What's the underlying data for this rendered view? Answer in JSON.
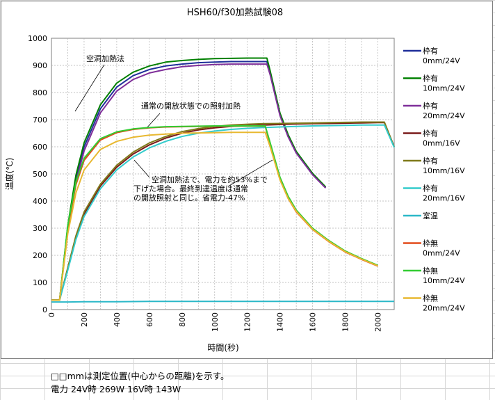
{
  "notes": {
    "line1": "□□mmは測定位置(中心からの距離)を示す。",
    "line2": "電力 24V時 269W 16V時 143W"
  },
  "chart_data": {
    "type": "line",
    "title": "HSH60/f30加熱試験08",
    "xlabel": "時間(秒)",
    "ylabel": "温度(℃)",
    "xlim": [
      0,
      2100
    ],
    "ylim": [
      0,
      1000
    ],
    "x_ticks": [
      0,
      200,
      400,
      600,
      800,
      1000,
      1200,
      1400,
      1600,
      1800,
      2000
    ],
    "y_ticks": [
      0,
      100,
      200,
      300,
      400,
      500,
      600,
      700,
      800,
      900,
      1000
    ],
    "grid": "vertical-and-horizontal",
    "legend_position": "right",
    "series": [
      {
        "name": "枠有 0mm/24V",
        "color": "#1f2f9a",
        "points": [
          [
            0,
            35
          ],
          [
            50,
            35
          ],
          [
            100,
            300
          ],
          [
            150,
            480
          ],
          [
            200,
            600
          ],
          [
            300,
            740
          ],
          [
            400,
            820
          ],
          [
            500,
            862
          ],
          [
            600,
            885
          ],
          [
            700,
            898
          ],
          [
            800,
            905
          ],
          [
            900,
            910
          ],
          [
            1000,
            912
          ],
          [
            1100,
            914
          ],
          [
            1200,
            914
          ],
          [
            1320,
            914
          ],
          [
            1340,
            870
          ],
          [
            1400,
            720
          ],
          [
            1450,
            640
          ],
          [
            1500,
            580
          ],
          [
            1600,
            500
          ],
          [
            1680,
            450
          ]
        ]
      },
      {
        "name": "枠有 10mm/24V",
        "color": "#008000",
        "points": [
          [
            0,
            35
          ],
          [
            50,
            35
          ],
          [
            100,
            310
          ],
          [
            150,
            495
          ],
          [
            200,
            615
          ],
          [
            300,
            755
          ],
          [
            400,
            835
          ],
          [
            500,
            875
          ],
          [
            600,
            898
          ],
          [
            700,
            912
          ],
          [
            800,
            918
          ],
          [
            900,
            922
          ],
          [
            1000,
            925
          ],
          [
            1100,
            926
          ],
          [
            1200,
            927
          ],
          [
            1320,
            927
          ],
          [
            1340,
            880
          ],
          [
            1400,
            725
          ],
          [
            1450,
            645
          ],
          [
            1500,
            583
          ],
          [
            1600,
            502
          ],
          [
            1680,
            452
          ]
        ]
      },
      {
        "name": "枠有 20mm/24V",
        "color": "#7f2f9a",
        "points": [
          [
            0,
            35
          ],
          [
            50,
            35
          ],
          [
            100,
            290
          ],
          [
            150,
            470
          ],
          [
            200,
            585
          ],
          [
            300,
            725
          ],
          [
            400,
            805
          ],
          [
            500,
            848
          ],
          [
            600,
            872
          ],
          [
            700,
            885
          ],
          [
            800,
            895
          ],
          [
            900,
            900
          ],
          [
            1000,
            903
          ],
          [
            1100,
            905
          ],
          [
            1200,
            905
          ],
          [
            1320,
            905
          ],
          [
            1340,
            865
          ],
          [
            1400,
            715
          ],
          [
            1450,
            637
          ],
          [
            1500,
            577
          ],
          [
            1600,
            497
          ],
          [
            1680,
            448
          ]
        ]
      },
      {
        "name": "枠有 0mm/16V",
        "color": "#7a1a1a",
        "points": [
          [
            0,
            35
          ],
          [
            50,
            35
          ],
          [
            100,
            150
          ],
          [
            150,
            265
          ],
          [
            200,
            352
          ],
          [
            300,
            455
          ],
          [
            400,
            525
          ],
          [
            500,
            573
          ],
          [
            600,
            607
          ],
          [
            700,
            632
          ],
          [
            800,
            650
          ],
          [
            900,
            662
          ],
          [
            1000,
            670
          ],
          [
            1100,
            675
          ],
          [
            1200,
            678
          ],
          [
            1300,
            680
          ],
          [
            1400,
            682
          ],
          [
            1500,
            684
          ],
          [
            1600,
            685
          ],
          [
            1700,
            686
          ],
          [
            1800,
            687
          ],
          [
            1900,
            688
          ],
          [
            2000,
            689
          ],
          [
            2040,
            689
          ],
          [
            2100,
            600
          ]
        ]
      },
      {
        "name": "枠有 10mm/16V",
        "color": "#7f7a1a",
        "points": [
          [
            0,
            35
          ],
          [
            50,
            35
          ],
          [
            100,
            155
          ],
          [
            150,
            272
          ],
          [
            200,
            360
          ],
          [
            300,
            462
          ],
          [
            400,
            532
          ],
          [
            500,
            580
          ],
          [
            600,
            614
          ],
          [
            700,
            638
          ],
          [
            800,
            656
          ],
          [
            900,
            667
          ],
          [
            1000,
            675
          ],
          [
            1100,
            680
          ],
          [
            1200,
            683
          ],
          [
            1300,
            685
          ],
          [
            1400,
            686
          ],
          [
            1500,
            687
          ],
          [
            1600,
            688
          ],
          [
            1700,
            689
          ],
          [
            1800,
            690
          ],
          [
            1900,
            691
          ],
          [
            2000,
            691
          ],
          [
            2040,
            691
          ],
          [
            2100,
            600
          ]
        ]
      },
      {
        "name": "枠有 20mm/16V",
        "color": "#33cccc",
        "points": [
          [
            0,
            35
          ],
          [
            50,
            35
          ],
          [
            100,
            145
          ],
          [
            150,
            258
          ],
          [
            200,
            343
          ],
          [
            300,
            445
          ],
          [
            400,
            515
          ],
          [
            500,
            562
          ],
          [
            600,
            596
          ],
          [
            700,
            620
          ],
          [
            800,
            638
          ],
          [
            900,
            650
          ],
          [
            1000,
            658
          ],
          [
            1100,
            664
          ],
          [
            1200,
            668
          ],
          [
            1300,
            671
          ],
          [
            1400,
            673
          ],
          [
            1500,
            675
          ],
          [
            1600,
            677
          ],
          [
            1700,
            678
          ],
          [
            1800,
            679
          ],
          [
            1900,
            680
          ],
          [
            2000,
            680
          ],
          [
            2040,
            680
          ],
          [
            2100,
            598
          ]
        ]
      },
      {
        "name": "室温",
        "color": "#2bb8c8",
        "points": [
          [
            0,
            28
          ],
          [
            100,
            28
          ],
          [
            200,
            29
          ],
          [
            400,
            29
          ],
          [
            600,
            30
          ],
          [
            800,
            30
          ],
          [
            1000,
            30
          ],
          [
            1200,
            30
          ],
          [
            1400,
            30
          ],
          [
            1600,
            30
          ],
          [
            1800,
            30
          ],
          [
            2000,
            30
          ],
          [
            2100,
            30
          ]
        ]
      },
      {
        "name": "枠無 0mm/24V",
        "color": "#e24a1a",
        "points": [
          [
            0,
            35
          ],
          [
            50,
            35
          ],
          [
            100,
            300
          ],
          [
            150,
            460
          ],
          [
            200,
            550
          ],
          [
            300,
            625
          ],
          [
            400,
            652
          ],
          [
            500,
            664
          ],
          [
            600,
            670
          ],
          [
            700,
            673
          ],
          [
            800,
            674
          ],
          [
            900,
            675
          ],
          [
            1000,
            676
          ],
          [
            1100,
            676
          ],
          [
            1200,
            676
          ],
          [
            1310,
            676
          ],
          [
            1340,
            610
          ],
          [
            1400,
            480
          ],
          [
            1450,
            410
          ],
          [
            1500,
            360
          ],
          [
            1600,
            295
          ],
          [
            1700,
            250
          ],
          [
            1800,
            212
          ],
          [
            1900,
            185
          ],
          [
            2000,
            160
          ]
        ]
      },
      {
        "name": "枠無 10mm/24V",
        "color": "#33cc33",
        "points": [
          [
            0,
            35
          ],
          [
            50,
            35
          ],
          [
            100,
            310
          ],
          [
            150,
            470
          ],
          [
            200,
            558
          ],
          [
            300,
            630
          ],
          [
            400,
            655
          ],
          [
            500,
            666
          ],
          [
            600,
            671
          ],
          [
            700,
            674
          ],
          [
            800,
            675
          ],
          [
            900,
            676
          ],
          [
            1000,
            677
          ],
          [
            1100,
            677
          ],
          [
            1200,
            677
          ],
          [
            1310,
            677
          ],
          [
            1340,
            615
          ],
          [
            1400,
            488
          ],
          [
            1450,
            418
          ],
          [
            1500,
            367
          ],
          [
            1600,
            300
          ],
          [
            1700,
            254
          ],
          [
            1800,
            216
          ],
          [
            1900,
            188
          ],
          [
            2000,
            163
          ]
        ]
      },
      {
        "name": "枠無 20mm/24V",
        "color": "#e8b830",
        "points": [
          [
            0,
            35
          ],
          [
            50,
            35
          ],
          [
            100,
            280
          ],
          [
            150,
            430
          ],
          [
            200,
            515
          ],
          [
            300,
            590
          ],
          [
            400,
            620
          ],
          [
            500,
            635
          ],
          [
            600,
            643
          ],
          [
            700,
            647
          ],
          [
            800,
            650
          ],
          [
            900,
            651
          ],
          [
            1000,
            652
          ],
          [
            1100,
            653
          ],
          [
            1200,
            653
          ],
          [
            1310,
            653
          ],
          [
            1340,
            600
          ],
          [
            1400,
            478
          ],
          [
            1450,
            410
          ],
          [
            1500,
            362
          ],
          [
            1600,
            296
          ],
          [
            1700,
            251
          ],
          [
            1800,
            213
          ],
          [
            1900,
            186
          ],
          [
            2000,
            161
          ]
        ]
      }
    ],
    "annotations": [
      {
        "text": "空洞加熱法"
      },
      {
        "text": "通常の開放状態での照射加熱"
      },
      {
        "text": "空洞加熱法で、電力を約53%まで\n下げた場合。最終到達温度は通常\nの開放照射と同じ。省電力-47%"
      }
    ]
  }
}
